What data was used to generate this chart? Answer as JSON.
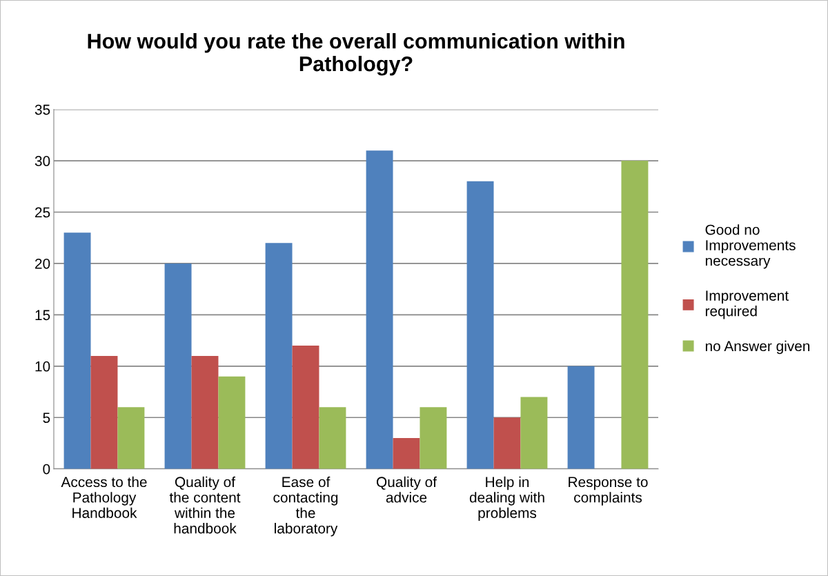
{
  "chart_data": {
    "type": "bar",
    "title": "How would you rate the overall communication within\nPathology?",
    "categories": [
      "Access to the\nPathology\nHandbook",
      "Quality of\nthe content\nwithin the\nhandbook",
      "Ease of\ncontacting\nthe\nlaboratory",
      "Quality of\nadvice",
      "Help in\ndealing with\nproblems",
      "Response to\ncomplaints"
    ],
    "series": [
      {
        "name": "Good no\nImprovements\nnecessary",
        "color": "#4f81bd",
        "values": [
          23,
          20,
          22,
          31,
          28,
          10
        ]
      },
      {
        "name": "Improvement\nrequired",
        "color": "#c0504d",
        "values": [
          11,
          11,
          12,
          3,
          5,
          null
        ]
      },
      {
        "name": "no Answer given",
        "color": "#9bbb59",
        "values": [
          6,
          9,
          6,
          6,
          7,
          30
        ]
      }
    ],
    "ylim": [
      0,
      35
    ],
    "yticks": [
      0,
      5,
      10,
      15,
      20,
      25,
      30,
      35
    ],
    "grid": "y",
    "legend": "right"
  }
}
